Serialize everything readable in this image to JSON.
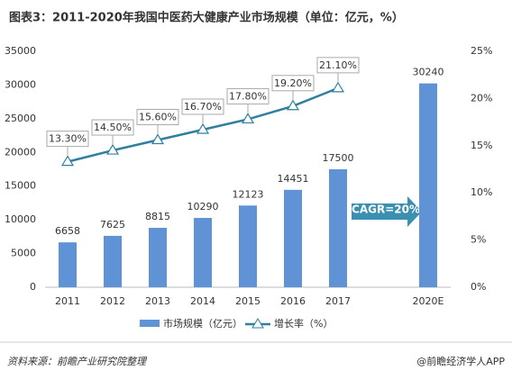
{
  "chart_data": {
    "type": "bar_line",
    "title": "图表3：2011-2020年我国中医药大健康产业市场规模（单位：亿元，%）",
    "categories": [
      "2011",
      "2012",
      "2013",
      "2014",
      "2015",
      "2016",
      "2017",
      null,
      "2020E"
    ],
    "series": [
      {
        "name": "市场规模（亿元）",
        "type": "bar",
        "color": "#5f93d6",
        "values": [
          6658,
          7625,
          8815,
          10290,
          12123,
          14451,
          17500,
          null,
          30240
        ]
      },
      {
        "name": "增长率（%）",
        "type": "line",
        "axis": "y2",
        "color": "#2f7f9f",
        "values": [
          13.3,
          14.5,
          15.6,
          16.7,
          17.8,
          19.2,
          21.1,
          null,
          null
        ],
        "value_labels": [
          "13.30%",
          "14.50%",
          "15.60%",
          "16.70%",
          "17.80%",
          "19.20%",
          "21.10%",
          null,
          null
        ]
      }
    ],
    "ylim": [
      0,
      35000
    ],
    "yticks": [
      0,
      5000,
      10000,
      15000,
      20000,
      25000,
      30000,
      35000
    ],
    "y2lim": [
      0,
      25
    ],
    "y2ticks": [
      {
        "value": 0,
        "label": "0%"
      },
      {
        "value": 5,
        "label": "5%"
      },
      {
        "value": 10,
        "label": "10%"
      },
      {
        "value": 15,
        "label": "15%"
      },
      {
        "value": 20,
        "label": "20%"
      },
      {
        "value": 25,
        "label": "25%"
      }
    ],
    "grid": false,
    "annotation": "CAGR=20%",
    "source": "资料来源：前瞻产业研究院整理",
    "credit": "@前瞻经济学人APP"
  }
}
